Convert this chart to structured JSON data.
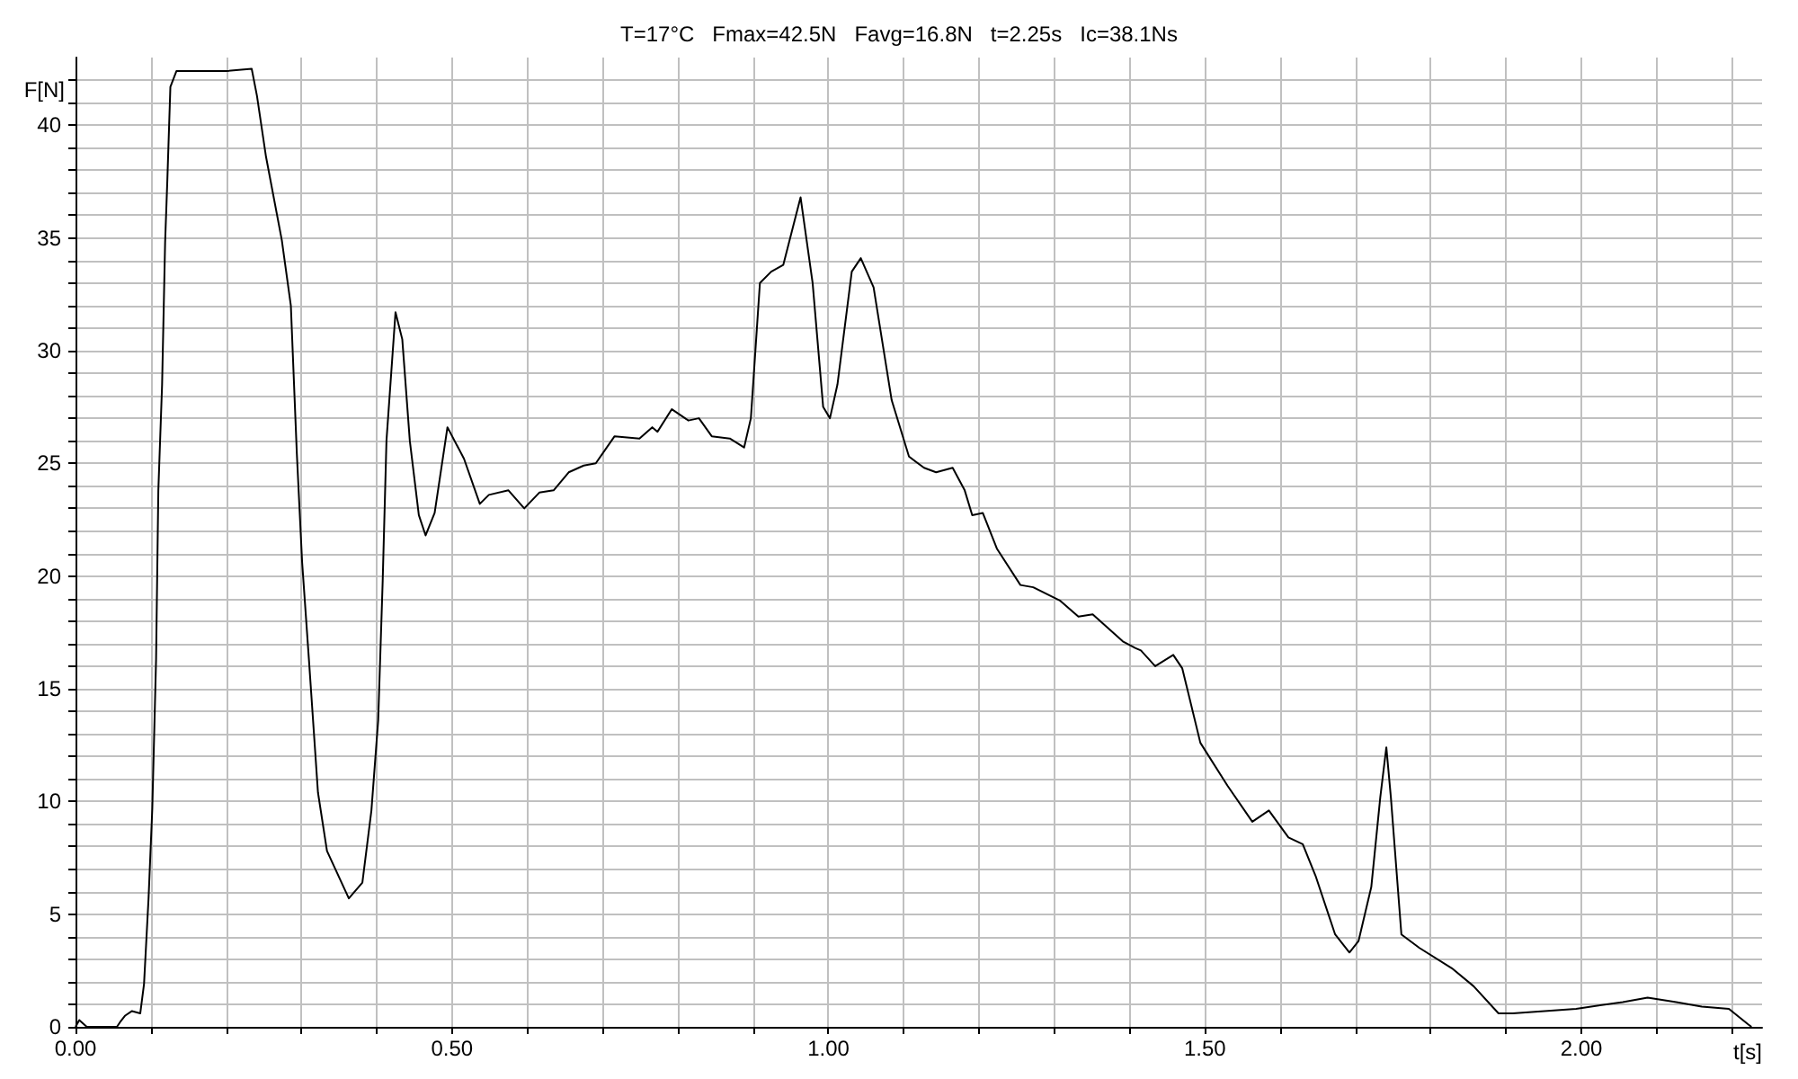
{
  "chart_data": {
    "type": "line",
    "title": "T=17°C   Fmax=42.5N   Favg=16.8N   t=2.25s   Ic=38.1Ns",
    "xlabel": "t[s]",
    "ylabel": "F[N]",
    "x": [
      0,
      0.005,
      0.015,
      0.055,
      0.059,
      0.066,
      0.075,
      0.086,
      0.091,
      0.097,
      0.102,
      0.107,
      0.11,
      0.115,
      0.119,
      0.122,
      0.126,
      0.134,
      0.2,
      0.234,
      0.241,
      0.253,
      0.274,
      0.286,
      0.294,
      0.301,
      0.31,
      0.322,
      0.334,
      0.363,
      0.381,
      0.393,
      0.402,
      0.408,
      0.413,
      0.425,
      0.434,
      0.444,
      0.456,
      0.465,
      0.477,
      0.494,
      0.516,
      0.537,
      0.549,
      0.575,
      0.596,
      0.616,
      0.635,
      0.655,
      0.675,
      0.691,
      0.716,
      0.749,
      0.766,
      0.773,
      0.792,
      0.814,
      0.828,
      0.845,
      0.869,
      0.888,
      0.897,
      0.909,
      0.924,
      0.94,
      0.963,
      0.979,
      0.993,
      1.002,
      1.012,
      1.031,
      1.043,
      1.06,
      1.084,
      1.107,
      1.127,
      1.143,
      1.165,
      1.181,
      1.191,
      1.205,
      1.224,
      1.255,
      1.272,
      1.308,
      1.332,
      1.351,
      1.391,
      1.408,
      1.415,
      1.434,
      1.458,
      1.47,
      1.494,
      1.53,
      1.563,
      1.585,
      1.611,
      1.63,
      1.647,
      1.673,
      1.692,
      1.704,
      1.721,
      1.733,
      1.741,
      1.747,
      1.761,
      1.785,
      1.828,
      1.857,
      1.89,
      1.909,
      1.993,
      2.055,
      2.088,
      2.126,
      2.16,
      2.196,
      2.222,
      2.226
    ],
    "values": [
      0,
      0.3,
      0,
      0,
      0.2,
      0.5,
      0.7,
      0.6,
      1.9,
      5.7,
      9.7,
      16.3,
      23.8,
      28.5,
      34.8,
      37.6,
      41.7,
      42.4,
      42.4,
      42.5,
      41.3,
      38.6,
      34.9,
      32,
      25.4,
      20.6,
      16.3,
      10.4,
      7.8,
      5.7,
      6.4,
      9.6,
      13.6,
      19.8,
      26,
      31.7,
      30.5,
      26,
      22.7,
      21.8,
      22.8,
      26.6,
      25.2,
      23.2,
      23.6,
      23.8,
      23,
      23.7,
      23.8,
      24.6,
      24.9,
      25,
      26.2,
      26.1,
      26.6,
      26.4,
      27.4,
      26.9,
      27,
      26.2,
      26.1,
      25.7,
      27,
      33,
      33.5,
      33.8,
      36.8,
      33,
      27.5,
      27,
      28.5,
      33.5,
      34.1,
      32.8,
      27.8,
      25.3,
      24.8,
      24.6,
      24.8,
      23.8,
      22.7,
      22.8,
      21.2,
      19.6,
      19.5,
      18.9,
      18.2,
      18.3,
      17.1,
      16.8,
      16.7,
      16,
      16.5,
      15.9,
      12.6,
      10.7,
      9.1,
      9.6,
      8.4,
      8.1,
      6.7,
      4.1,
      3.3,
      3.8,
      6.2,
      10.2,
      12.4,
      10.2,
      4.1,
      3.5,
      2.6,
      1.8,
      0.6,
      0.6,
      0.8,
      1.1,
      1.3,
      1.1,
      0.9,
      0.8,
      0.1,
      0
    ],
    "color": "#000000",
    "marker": "none",
    "line_style": "solid",
    "grid": true,
    "xlim": [
      0,
      2.24
    ],
    "ylim": [
      0,
      43
    ],
    "xticks": [
      {
        "value": 0,
        "label": "0.00"
      },
      {
        "value": 0.1,
        "label": null
      },
      {
        "value": 0.2,
        "label": null
      },
      {
        "value": 0.3,
        "label": null
      },
      {
        "value": 0.4,
        "label": null
      },
      {
        "value": 0.5,
        "label": "0.50"
      },
      {
        "value": 0.6,
        "label": null
      },
      {
        "value": 0.7,
        "label": null
      },
      {
        "value": 0.8,
        "label": null
      },
      {
        "value": 0.9,
        "label": null
      },
      {
        "value": 1,
        "label": "1.00"
      },
      {
        "value": 1.1,
        "label": null
      },
      {
        "value": 1.2,
        "label": null
      },
      {
        "value": 1.3,
        "label": null
      },
      {
        "value": 1.4,
        "label": null
      },
      {
        "value": 1.5,
        "label": "1.50"
      },
      {
        "value": 1.6,
        "label": null
      },
      {
        "value": 1.7,
        "label": null
      },
      {
        "value": 1.8,
        "label": null
      },
      {
        "value": 1.9,
        "label": null
      },
      {
        "value": 2,
        "label": "2.00"
      },
      {
        "value": 2.1,
        "label": null
      },
      {
        "value": 2.2,
        "label": null
      }
    ],
    "yticks": [
      0,
      {
        "value": 1,
        "label": null
      },
      {
        "value": 2,
        "label": null
      },
      {
        "value": 3,
        "label": null
      },
      {
        "value": 4,
        "label": null
      },
      5,
      {
        "value": 6,
        "label": null
      },
      {
        "value": 7,
        "label": null
      },
      {
        "value": 8,
        "label": null
      },
      {
        "value": 9,
        "label": null
      },
      10,
      {
        "value": 11,
        "label": null
      },
      {
        "value": 12,
        "label": null
      },
      {
        "value": 13,
        "label": null
      },
      {
        "value": 14,
        "label": null
      },
      15,
      {
        "value": 16,
        "label": null
      },
      {
        "value": 17,
        "label": null
      },
      {
        "value": 18,
        "label": null
      },
      {
        "value": 19,
        "label": null
      },
      20,
      {
        "value": 21,
        "label": null
      },
      {
        "value": 22,
        "label": null
      },
      {
        "value": 23,
        "label": null
      },
      {
        "value": 24,
        "label": null
      },
      25,
      {
        "value": 26,
        "label": null
      },
      {
        "value": 27,
        "label": null
      },
      {
        "value": 28,
        "label": null
      },
      {
        "value": 29,
        "label": null
      },
      30,
      {
        "value": 31,
        "label": null
      },
      {
        "value": 32,
        "label": null
      },
      {
        "value": 33,
        "label": null
      },
      {
        "value": 34,
        "label": null
      },
      35,
      {
        "value": 36,
        "label": null
      },
      {
        "value": 37,
        "label": null
      },
      {
        "value": 38,
        "label": null
      },
      {
        "value": 39,
        "label": null
      },
      40,
      {
        "value": 41,
        "label": null
      },
      {
        "value": 42,
        "label": null
      }
    ]
  }
}
